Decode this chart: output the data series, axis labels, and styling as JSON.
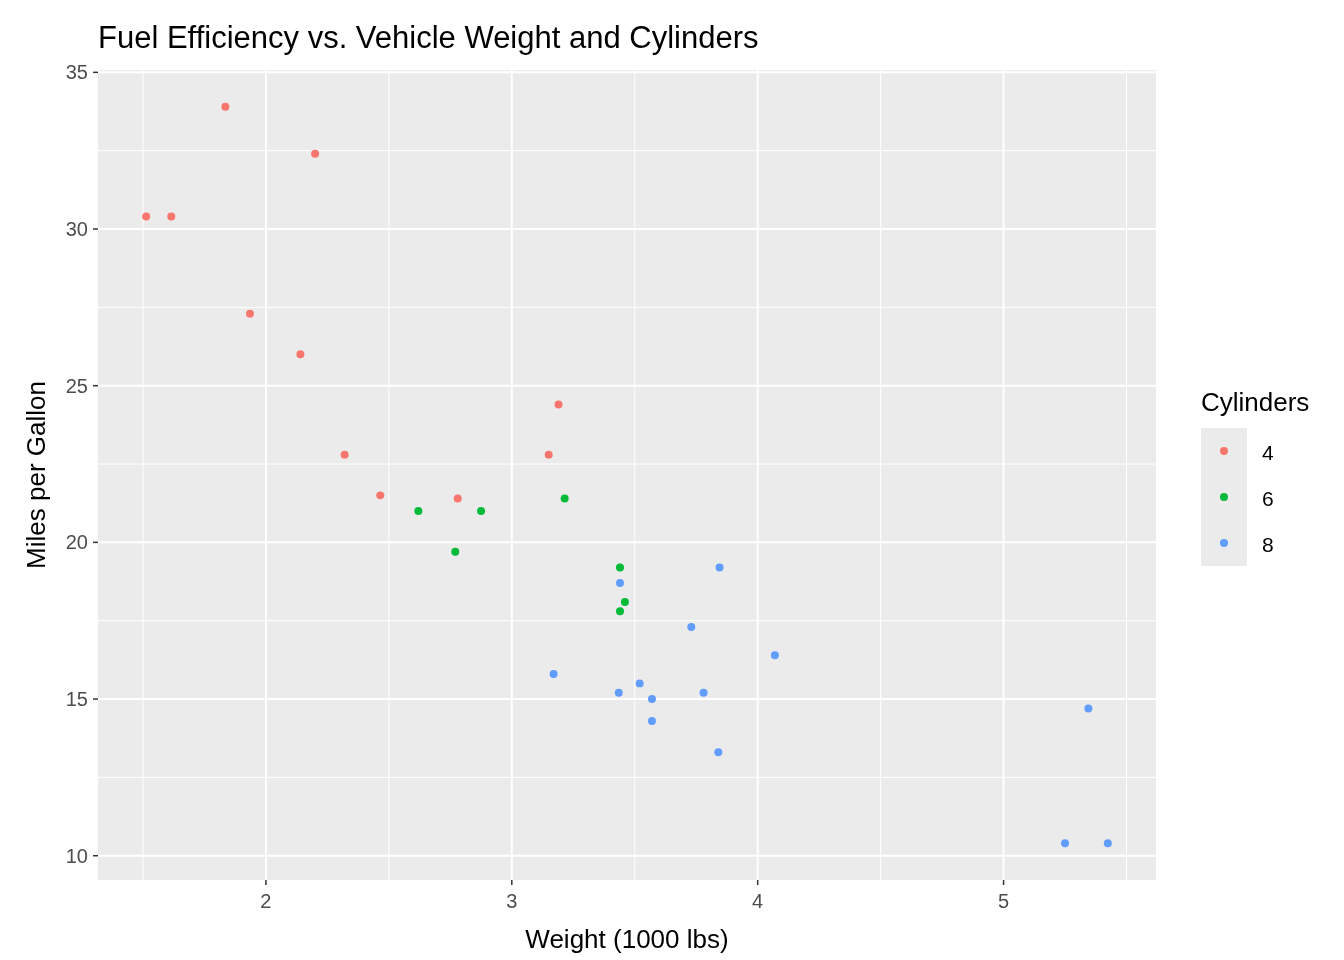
{
  "chart_data": {
    "type": "scatter",
    "title": "Fuel Efficiency vs. Vehicle Weight and Cylinders",
    "xlabel": "Weight (1000 lbs)",
    "ylabel": "Miles per Gallon",
    "legend_title": "Cylinders",
    "legend": "right",
    "grid": true,
    "marker": "circle",
    "xlim": [
      1.317,
      5.62
    ],
    "xticks": [
      2,
      3,
      4,
      5
    ],
    "ylim": [
      9.225,
      35.075
    ],
    "yticks": [
      10,
      15,
      20,
      25,
      30,
      35
    ],
    "series": [
      {
        "name": "4",
        "color": "#f8766d",
        "x": [
          2.32,
          3.19,
          3.15,
          2.2,
          1.615,
          1.835,
          2.465,
          1.935,
          2.14,
          1.513,
          2.78
        ],
        "values": [
          22.8,
          24.4,
          22.8,
          32.4,
          30.4,
          33.9,
          21.5,
          27.3,
          26.0,
          30.4,
          21.4
        ]
      },
      {
        "name": "6",
        "color": "#00ba38",
        "x": [
          2.62,
          2.875,
          3.215,
          3.46,
          3.44,
          3.44,
          2.77
        ],
        "values": [
          21.0,
          21.0,
          21.4,
          18.1,
          19.2,
          17.8,
          19.7
        ]
      },
      {
        "name": "8",
        "color": "#619cff",
        "x": [
          3.44,
          3.57,
          4.07,
          3.73,
          3.78,
          5.25,
          5.424,
          5.345,
          3.52,
          3.435,
          3.84,
          3.845,
          3.17,
          3.57
        ],
        "values": [
          18.7,
          14.3,
          16.4,
          17.3,
          15.2,
          10.4,
          10.4,
          14.7,
          15.5,
          15.2,
          13.3,
          19.2,
          15.8,
          15.0
        ]
      }
    ]
  }
}
